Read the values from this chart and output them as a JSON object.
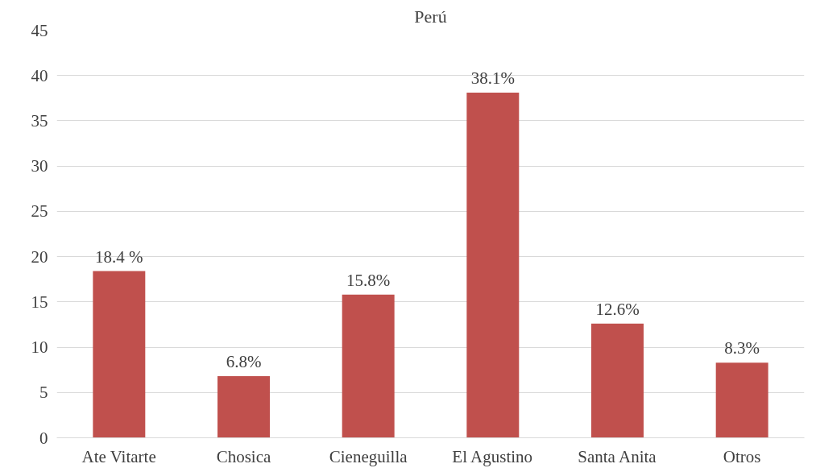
{
  "chart_data": {
    "type": "bar",
    "title": "Perú",
    "categories": [
      "Ate Vitarte",
      "Chosica",
      "Cieneguilla",
      "El Agustino",
      "Santa Anita",
      "Otros"
    ],
    "values": [
      18.4,
      6.8,
      15.8,
      38.1,
      12.6,
      8.3
    ],
    "value_labels": [
      "18.4 %",
      "6.8%",
      "15.8%",
      "38.1%",
      "12.6%",
      "8.3%"
    ],
    "color": "#c0504d",
    "ylim": [
      0,
      45
    ],
    "yticks": [
      0,
      5,
      10,
      15,
      20,
      25,
      30,
      35,
      40,
      45
    ],
    "grid": "y"
  }
}
